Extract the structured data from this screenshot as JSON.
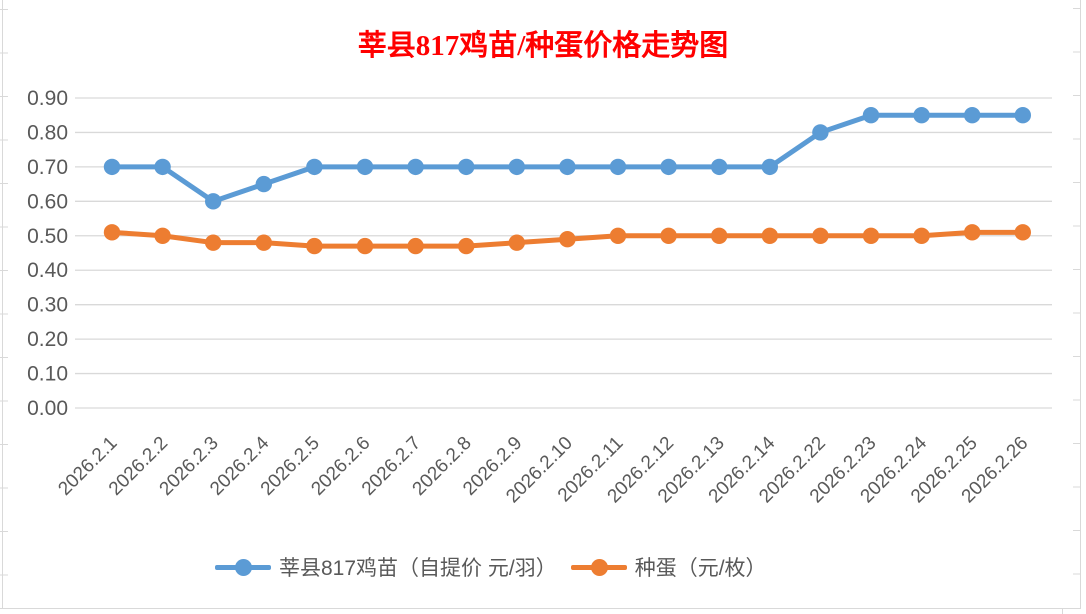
{
  "chart_data": {
    "type": "line",
    "title": "莘县817鸡苗/种蛋价格走势图",
    "categories": [
      "2026.2.1",
      "2026.2.2",
      "2026.2.3",
      "2026.2.4",
      "2026.2.5",
      "2026.2.6",
      "2026.2.7",
      "2026.2.8",
      "2026.2.9",
      "2026.2.10",
      "2026.2.11",
      "2026.2.12",
      "2026.2.13",
      "2026.2.14",
      "2026.2.22",
      "2026.2.23",
      "2026.2.24",
      "2026.2.25",
      "2026.2.26"
    ],
    "series": [
      {
        "name": "莘县817鸡苗（自提价 元/羽）",
        "color": "#5B9BD5",
        "values": [
          0.7,
          0.7,
          0.6,
          0.65,
          0.7,
          0.7,
          0.7,
          0.7,
          0.7,
          0.7,
          0.7,
          0.7,
          0.7,
          0.7,
          0.8,
          0.85,
          0.85,
          0.85,
          0.85
        ]
      },
      {
        "name": "种蛋（元/枚）",
        "color": "#ED7D31",
        "values": [
          0.51,
          0.5,
          0.48,
          0.48,
          0.47,
          0.47,
          0.47,
          0.47,
          0.48,
          0.49,
          0.5,
          0.5,
          0.5,
          0.5,
          0.5,
          0.5,
          0.5,
          0.51,
          0.51
        ]
      }
    ],
    "ylim": [
      0,
      0.9
    ],
    "y_ticks": [
      "0.00",
      "0.10",
      "0.20",
      "0.30",
      "0.40",
      "0.50",
      "0.60",
      "0.70",
      "0.80",
      "0.90"
    ],
    "xlabel": "",
    "ylabel": "",
    "grid": true,
    "legend_position": "bottom",
    "marker": "circle",
    "x_label_rotation": -45
  },
  "colors": {
    "title": "#FF0000",
    "axis_text": "#595959",
    "gridline": "#D9D9D9",
    "sheet_border": "#D9D9D9",
    "background": "#FFFFFF"
  }
}
